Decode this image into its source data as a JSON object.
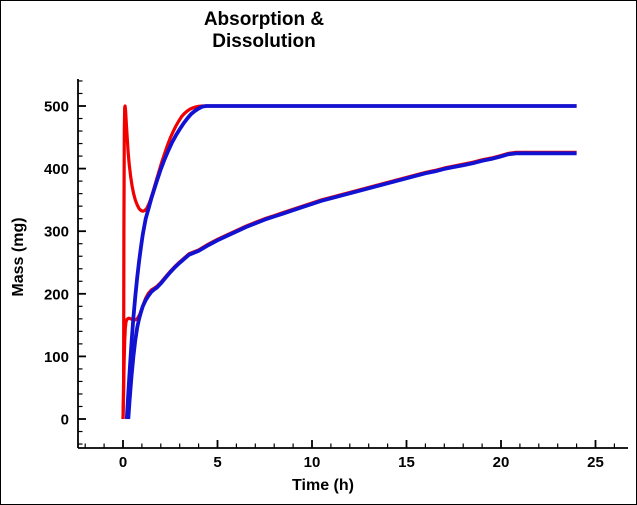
{
  "title": {
    "line1": "Absorption &",
    "line2": "Dissolution"
  },
  "chart_data": {
    "type": "line",
    "title": "Absorption & Dissolution",
    "xlabel": "Time (h)",
    "ylabel": "Mass (mg)",
    "xlim": [
      -2.4,
      26.7
    ],
    "ylim": [
      -47,
      543
    ],
    "x_major_ticks": [
      0,
      5,
      10,
      15,
      20,
      25
    ],
    "x_minor_tick_step": 1,
    "x_minor_tick_range": [
      -2,
      26
    ],
    "y_major_ticks": [
      0,
      100,
      200,
      300,
      400,
      500
    ],
    "y_minor_tick_step": 20,
    "y_minor_tick_range": [
      -40,
      540
    ],
    "grid": false,
    "legend": "none",
    "colors": {
      "red": "#f20000",
      "blue": "#1212d2",
      "axis": "#000000",
      "background": "#ffffff"
    },
    "series": [
      {
        "name": "dissolution-red",
        "color": "#f20000",
        "stroke_width": 3.2,
        "points": [
          [
            0,
            0
          ],
          [
            0.03,
            60
          ],
          [
            0.05,
            300
          ],
          [
            0.07,
            460
          ],
          [
            0.09,
            498
          ],
          [
            0.11,
            500
          ],
          [
            0.14,
            492
          ],
          [
            0.18,
            470
          ],
          [
            0.22,
            450
          ],
          [
            0.27,
            427
          ],
          [
            0.33,
            407
          ],
          [
            0.4,
            388
          ],
          [
            0.48,
            372
          ],
          [
            0.56,
            360
          ],
          [
            0.65,
            350
          ],
          [
            0.75,
            342
          ],
          [
            0.85,
            336
          ],
          [
            0.95,
            333
          ],
          [
            1.05,
            332
          ],
          [
            1.15,
            333
          ],
          [
            1.25,
            336
          ],
          [
            1.35,
            342
          ],
          [
            1.45,
            350
          ],
          [
            1.6,
            364
          ],
          [
            1.75,
            380
          ],
          [
            1.9,
            395
          ],
          [
            2.05,
            410
          ],
          [
            2.2,
            424
          ],
          [
            2.35,
            437
          ],
          [
            2.5,
            449
          ],
          [
            2.65,
            459
          ],
          [
            2.8,
            468
          ],
          [
            2.95,
            476
          ],
          [
            3.1,
            483
          ],
          [
            3.25,
            488
          ],
          [
            3.4,
            492
          ],
          [
            3.55,
            495
          ],
          [
            3.7,
            497
          ],
          [
            3.85,
            498.5
          ],
          [
            4.0,
            499.5
          ],
          [
            4.2,
            500
          ],
          [
            24,
            500
          ]
        ]
      },
      {
        "name": "absorption-red",
        "color": "#f20000",
        "stroke_width": 3.2,
        "points": [
          [
            0,
            0
          ],
          [
            0.03,
            40
          ],
          [
            0.06,
            90
          ],
          [
            0.09,
            125
          ],
          [
            0.12,
            145
          ],
          [
            0.16,
            155
          ],
          [
            0.2,
            159
          ],
          [
            0.3,
            161
          ],
          [
            0.4,
            160
          ],
          [
            0.5,
            159
          ],
          [
            0.6,
            158
          ],
          [
            0.7,
            159
          ],
          [
            0.8,
            162
          ],
          [
            0.9,
            168
          ],
          [
            1.0,
            176
          ],
          [
            1.1,
            185
          ],
          [
            1.2,
            193
          ],
          [
            1.35,
            201
          ],
          [
            1.5,
            206
          ],
          [
            1.65,
            209
          ],
          [
            1.8,
            212
          ],
          [
            2.0,
            218
          ],
          [
            2.25,
            227
          ],
          [
            2.5,
            236
          ],
          [
            2.75,
            244
          ],
          [
            3.0,
            251
          ],
          [
            3.5,
            264
          ],
          [
            4.0,
            270
          ],
          [
            4.5,
            279
          ],
          [
            5,
            287
          ],
          [
            5.5,
            294
          ],
          [
            6,
            301
          ],
          [
            6.5,
            308
          ],
          [
            7,
            314
          ],
          [
            7.5,
            320
          ],
          [
            8,
            325
          ],
          [
            8.5,
            330
          ],
          [
            9,
            335
          ],
          [
            9.5,
            340
          ],
          [
            10,
            345
          ],
          [
            10.5,
            350
          ],
          [
            11,
            354
          ],
          [
            11.5,
            358
          ],
          [
            12,
            362
          ],
          [
            12.5,
            366
          ],
          [
            13,
            370
          ],
          [
            13.5,
            374
          ],
          [
            14,
            378
          ],
          [
            14.5,
            382
          ],
          [
            15,
            386
          ],
          [
            15.5,
            390
          ],
          [
            16,
            394
          ],
          [
            16.5,
            397
          ],
          [
            17,
            401
          ],
          [
            17.5,
            404
          ],
          [
            18,
            407
          ],
          [
            18.5,
            410
          ],
          [
            19,
            414
          ],
          [
            19.5,
            417
          ],
          [
            20,
            421
          ],
          [
            20.4,
            424.5
          ],
          [
            20.8,
            425.8
          ],
          [
            21,
            426
          ],
          [
            24,
            426
          ]
        ]
      },
      {
        "name": "dissolution-blue",
        "color": "#1212d2",
        "stroke_width": 3.8,
        "points": [
          [
            0.2,
            0
          ],
          [
            0.25,
            25
          ],
          [
            0.3,
            52
          ],
          [
            0.38,
            90
          ],
          [
            0.46,
            126
          ],
          [
            0.55,
            162
          ],
          [
            0.65,
            196
          ],
          [
            0.75,
            226
          ],
          [
            0.85,
            252
          ],
          [
            0.95,
            275
          ],
          [
            1.05,
            295
          ],
          [
            1.2,
            320
          ],
          [
            1.35,
            336
          ],
          [
            1.5,
            352
          ],
          [
            1.65,
            367
          ],
          [
            1.8,
            381
          ],
          [
            2.0,
            399
          ],
          [
            2.2,
            415
          ],
          [
            2.4,
            429
          ],
          [
            2.6,
            442
          ],
          [
            2.8,
            453
          ],
          [
            3.0,
            463
          ],
          [
            3.2,
            472
          ],
          [
            3.4,
            480
          ],
          [
            3.6,
            487
          ],
          [
            3.8,
            492
          ],
          [
            4.0,
            496
          ],
          [
            4.2,
            499
          ],
          [
            4.4,
            500
          ],
          [
            24,
            500
          ]
        ]
      },
      {
        "name": "absorption-blue",
        "color": "#1212d2",
        "stroke_width": 3.8,
        "points": [
          [
            0.28,
            0
          ],
          [
            0.35,
            30
          ],
          [
            0.45,
            68
          ],
          [
            0.55,
            100
          ],
          [
            0.65,
            126
          ],
          [
            0.75,
            146
          ],
          [
            0.85,
            160
          ],
          [
            0.95,
            171
          ],
          [
            1.05,
            180
          ],
          [
            1.2,
            190
          ],
          [
            1.35,
            197
          ],
          [
            1.5,
            203
          ],
          [
            1.65,
            207
          ],
          [
            1.8,
            210
          ],
          [
            2.0,
            216.5
          ],
          [
            2.25,
            225.5
          ],
          [
            2.5,
            234.5
          ],
          [
            2.75,
            242.5
          ],
          [
            3.0,
            249.5
          ],
          [
            3.5,
            262.5
          ],
          [
            4.0,
            268.5
          ],
          [
            4.5,
            277.5
          ],
          [
            5,
            285.5
          ],
          [
            5.5,
            292.5
          ],
          [
            6,
            299.5
          ],
          [
            6.5,
            306.5
          ],
          [
            7,
            312.5
          ],
          [
            7.5,
            318.5
          ],
          [
            8,
            323.5
          ],
          [
            8.5,
            328.5
          ],
          [
            9,
            333.5
          ],
          [
            9.5,
            338.5
          ],
          [
            10,
            343.5
          ],
          [
            10.5,
            348.5
          ],
          [
            11,
            352.5
          ],
          [
            11.5,
            356.5
          ],
          [
            12,
            360.5
          ],
          [
            12.5,
            364.5
          ],
          [
            13,
            368.5
          ],
          [
            13.5,
            372.5
          ],
          [
            14,
            376.5
          ],
          [
            14.5,
            380.5
          ],
          [
            15,
            384.5
          ],
          [
            15.5,
            388.5
          ],
          [
            16,
            392.5
          ],
          [
            16.5,
            395.5
          ],
          [
            17,
            399.5
          ],
          [
            17.5,
            402.5
          ],
          [
            18,
            405.5
          ],
          [
            18.5,
            408.5
          ],
          [
            19,
            412.5
          ],
          [
            19.5,
            415.5
          ],
          [
            20,
            419.5
          ],
          [
            20.4,
            423
          ],
          [
            20.8,
            424.3
          ],
          [
            21,
            424.5
          ],
          [
            24,
            424.5
          ]
        ]
      }
    ]
  }
}
